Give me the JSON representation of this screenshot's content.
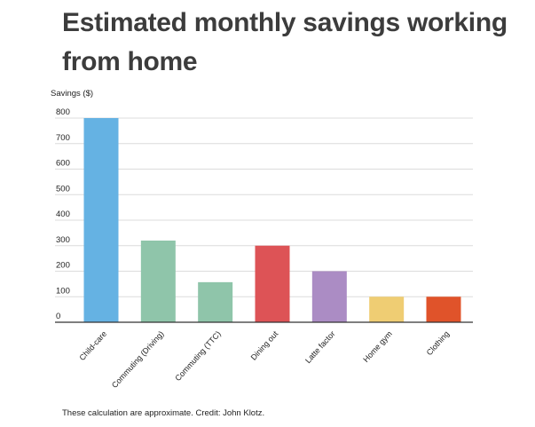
{
  "title": "Estimated monthly savings working from home",
  "footnote": "These calculation are approximate. Credit: John Klotz.",
  "chart_data": {
    "type": "bar",
    "title": "Estimated monthly savings working from home",
    "ylabel": "Savings ($)",
    "xlabel": "",
    "ylim": [
      0,
      800
    ],
    "yticks": [
      0,
      100,
      200,
      300,
      400,
      500,
      600,
      700,
      800
    ],
    "grid": true,
    "categories": [
      "Child-care",
      "Commuting (Driving)",
      "Commuting (TTC)",
      "Dining out",
      "Latte factor",
      "Home gym",
      "Clothing"
    ],
    "values": [
      800,
      320,
      157,
      300,
      200,
      100,
      100
    ],
    "colors": [
      "#65b2e3",
      "#8fc5aa",
      "#8fc5aa",
      "#dd5356",
      "#ab8cc4",
      "#efcd73",
      "#e0532a"
    ]
  }
}
